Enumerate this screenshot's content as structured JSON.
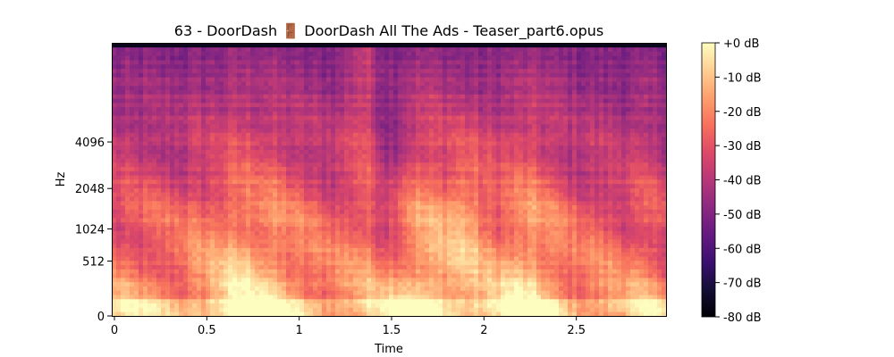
{
  "chart_data": {
    "type": "heatmap",
    "title": "63 - DoorDash 🚪 DoorDash All The Ads - Teaser_part6.opus",
    "xlabel": "Time",
    "ylabel": "Hz",
    "xlim": [
      0,
      3.0
    ],
    "x_ticks": [
      {
        "value": 0,
        "label": "0"
      },
      {
        "value": 0.5,
        "label": "0.5"
      },
      {
        "value": 1,
        "label": "1"
      },
      {
        "value": 1.5,
        "label": "1.5"
      },
      {
        "value": 2,
        "label": "2"
      },
      {
        "value": 2.5,
        "label": "2.5"
      }
    ],
    "y_scale": "log-like (mel)",
    "y_ticks": [
      {
        "value": 0,
        "label": "0"
      },
      {
        "value": 512,
        "label": "512"
      },
      {
        "value": 1024,
        "label": "1024"
      },
      {
        "value": 2048,
        "label": "2048"
      },
      {
        "value": 4096,
        "label": "4096"
      }
    ],
    "colorbar": {
      "colormap": "magma",
      "range": [
        -80,
        0
      ],
      "ticks": [
        {
          "value": 0,
          "label": "+0 dB"
        },
        {
          "value": -10,
          "label": "-10 dB"
        },
        {
          "value": -20,
          "label": "-20 dB"
        },
        {
          "value": -30,
          "label": "-30 dB"
        },
        {
          "value": -40,
          "label": "-40 dB"
        },
        {
          "value": -50,
          "label": "-50 dB"
        },
        {
          "value": -60,
          "label": "-60 dB"
        },
        {
          "value": -70,
          "label": "-70 dB"
        },
        {
          "value": -80,
          "label": "-80 dB"
        }
      ]
    }
  }
}
